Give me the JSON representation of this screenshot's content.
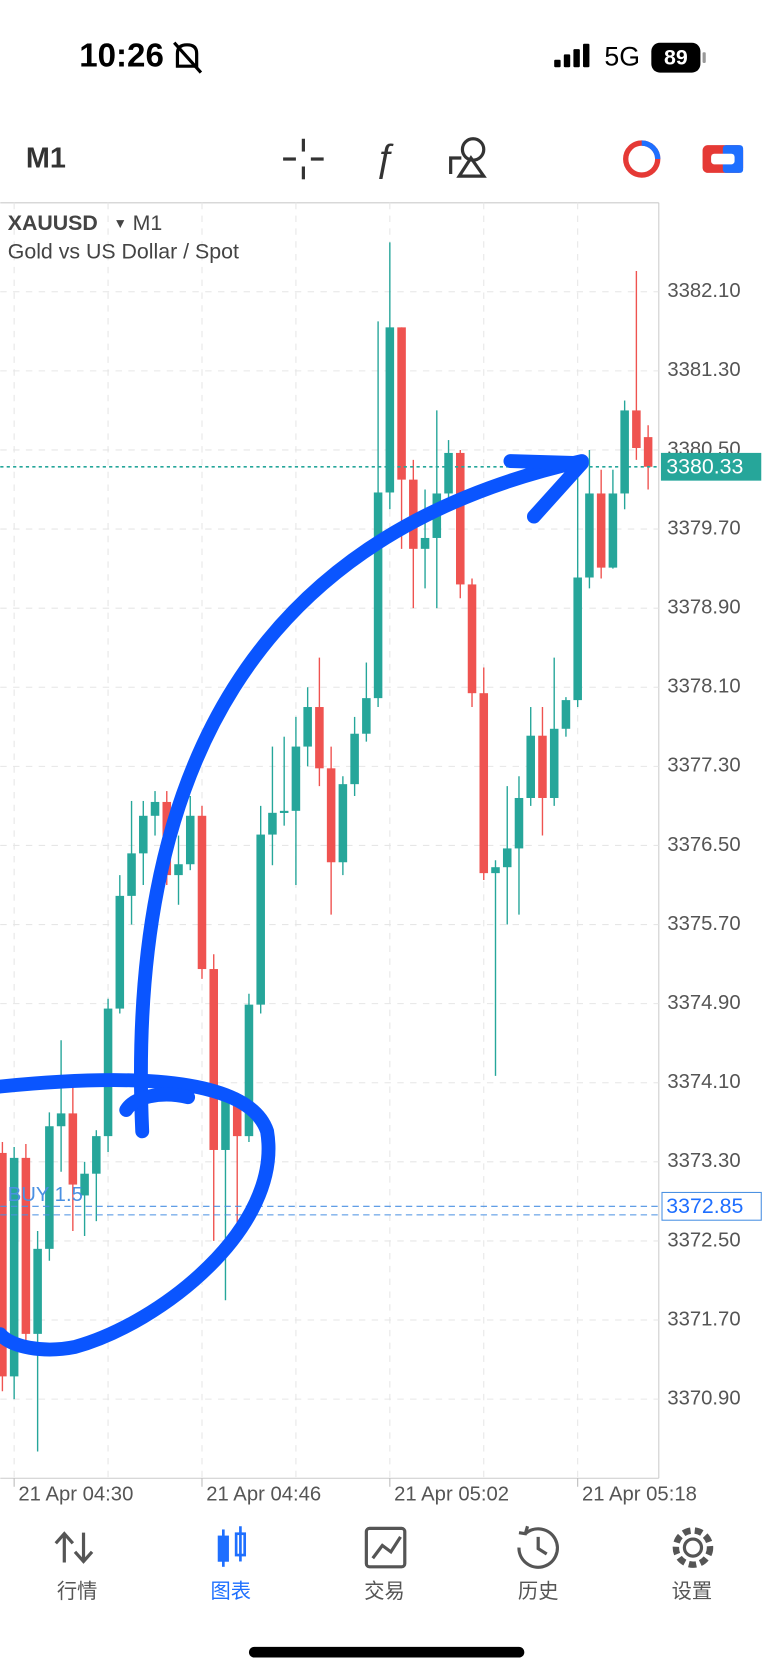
{
  "status_bar": {
    "time": "10:26",
    "network": "5G",
    "battery": "89"
  },
  "toolbar": {
    "timeframe": "M1"
  },
  "chart_data": {
    "type": "candlestick",
    "symbol": "XAUUSD",
    "timeframe": "M1",
    "subtitle": "Gold vs US Dollar / Spot",
    "categories": [
      null,
      "21 Apr 04:30",
      null,
      null,
      null,
      null,
      null,
      null,
      null,
      null,
      null,
      null,
      null,
      null,
      null,
      null,
      null,
      "21 Apr 04:46",
      null,
      null,
      null,
      null,
      null,
      null,
      null,
      null,
      null,
      null,
      null,
      null,
      null,
      null,
      null,
      "21 Apr 05:02",
      null,
      null,
      null,
      null,
      null,
      null,
      null,
      null,
      null,
      null,
      null,
      null,
      null,
      null,
      null,
      "21 Apr 05:18",
      null,
      null,
      null,
      null,
      null,
      null
    ],
    "open": [
      3373.39,
      3371.13,
      3373.34,
      3371.56,
      3372.42,
      3373.66,
      3373.79,
      3372.96,
      3373.18,
      3373.56,
      3374.85,
      3375.99,
      3376.42,
      3376.8,
      3376.94,
      3376.2,
      3376.31,
      3376.8,
      3375.25,
      3373.42,
      3373.93,
      3373.56,
      3374.89,
      3376.61,
      3376.83,
      3376.85,
      3377.5,
      3377.9,
      3377.28,
      3376.33,
      3377.12,
      3377.63,
      3377.99,
      3380.07,
      3381.74,
      3380.2,
      3379.5,
      3379.61,
      3380.06,
      3380.47,
      3379.14,
      3378.04,
      3376.22,
      3376.28,
      3376.47,
      3376.98,
      3377.61,
      3376.98,
      3377.68,
      3377.97,
      3379.21,
      3380.06,
      3379.31,
      3380.06,
      3380.9,
      3380.63
    ],
    "high": [
      3373.5,
      3373.45,
      3373.48,
      3372.6,
      3373.8,
      3374.53,
      3374.1,
      3373.3,
      3373.62,
      3374.95,
      3376.2,
      3376.95,
      3376.95,
      3377.05,
      3377.05,
      3376.6,
      3377.0,
      3376.9,
      3375.4,
      3374.0,
      3374.0,
      3375.0,
      3376.9,
      3377.5,
      3377.6,
      3377.8,
      3378.1,
      3378.4,
      3377.5,
      3377.2,
      3377.8,
      3378.35,
      3381.8,
      3382.6,
      3381.74,
      3380.4,
      3380.1,
      3380.9,
      3380.6,
      3380.5,
      3379.2,
      3378.3,
      3376.35,
      3377.1,
      3377.2,
      3377.9,
      3377.9,
      3378.4,
      3378.0,
      3380.4,
      3380.5,
      3380.3,
      3380.3,
      3381.0,
      3382.31,
      3380.75
    ],
    "low": [
      3370.98,
      3370.9,
      3371.4,
      3370.37,
      3372.3,
      3373.2,
      3372.6,
      3372.55,
      3372.7,
      3373.4,
      3374.8,
      3375.7,
      3376.1,
      3376.6,
      3376.1,
      3375.9,
      3376.25,
      3375.15,
      3372.5,
      3371.9,
      3372.6,
      3373.5,
      3374.8,
      3376.3,
      3376.7,
      3376.1,
      3377.3,
      3377.1,
      3375.8,
      3376.2,
      3377.0,
      3377.55,
      3377.9,
      3379.9,
      3379.5,
      3378.9,
      3379.1,
      3378.9,
      3379.9,
      3379.0,
      3377.9,
      3376.15,
      3374.17,
      3375.7,
      3375.8,
      3376.9,
      3376.6,
      3376.9,
      3377.6,
      3377.9,
      3379.1,
      3379.2,
      3379.3,
      3379.9,
      3380.4,
      3380.1
    ],
    "close": [
      3371.13,
      3373.34,
      3371.56,
      3372.42,
      3373.66,
      3373.79,
      3373.07,
      3373.18,
      3373.56,
      3374.85,
      3375.99,
      3376.42,
      3376.8,
      3376.94,
      3376.2,
      3376.31,
      3376.8,
      3375.25,
      3373.42,
      3373.93,
      3373.56,
      3374.89,
      3376.61,
      3376.83,
      3376.85,
      3377.5,
      3377.9,
      3377.28,
      3376.33,
      3377.12,
      3377.63,
      3377.99,
      3380.07,
      3381.74,
      3380.2,
      3379.5,
      3379.61,
      3380.06,
      3380.47,
      3379.14,
      3378.04,
      3376.22,
      3376.28,
      3376.47,
      3376.98,
      3377.61,
      3376.98,
      3377.68,
      3377.97,
      3379.21,
      3380.06,
      3379.31,
      3380.06,
      3380.9,
      3380.52,
      3380.33
    ],
    "up_color": "#26a69a",
    "down_color": "#ef5350",
    "ylim": [
      3370.1,
      3383.0
    ],
    "yticks": [
      {
        "value": 3382.1,
        "label": "3382.10"
      },
      {
        "value": 3381.3,
        "label": "3381.30"
      },
      {
        "value": 3380.5,
        "label": "3380.50"
      },
      {
        "value": 3379.7,
        "label": "3379.70"
      },
      {
        "value": 3378.9,
        "label": "3378.90"
      },
      {
        "value": 3378.1,
        "label": "3378.10"
      },
      {
        "value": 3377.3,
        "label": "3377.30"
      },
      {
        "value": 3376.5,
        "label": "3376.50"
      },
      {
        "value": 3375.7,
        "label": "3375.70"
      },
      {
        "value": 3374.9,
        "label": "3374.90"
      },
      {
        "value": 3374.1,
        "label": "3374.10"
      },
      {
        "value": 3373.3,
        "label": "3373.30"
      },
      {
        "value": 3372.5,
        "label": "3372.50"
      },
      {
        "value": 3371.7,
        "label": "3371.70"
      },
      {
        "value": 3370.9,
        "label": "3370.90"
      }
    ],
    "grid": true,
    "current_price": 3380.33,
    "orders": [
      {
        "label": "BUY 1.5",
        "price": 3372.85
      }
    ]
  },
  "tab_bar": {
    "tabs": [
      {
        "label": "行情"
      },
      {
        "label": "图表"
      },
      {
        "label": "交易"
      },
      {
        "label": "历史"
      },
      {
        "label": "设置"
      }
    ],
    "active": 1
  }
}
